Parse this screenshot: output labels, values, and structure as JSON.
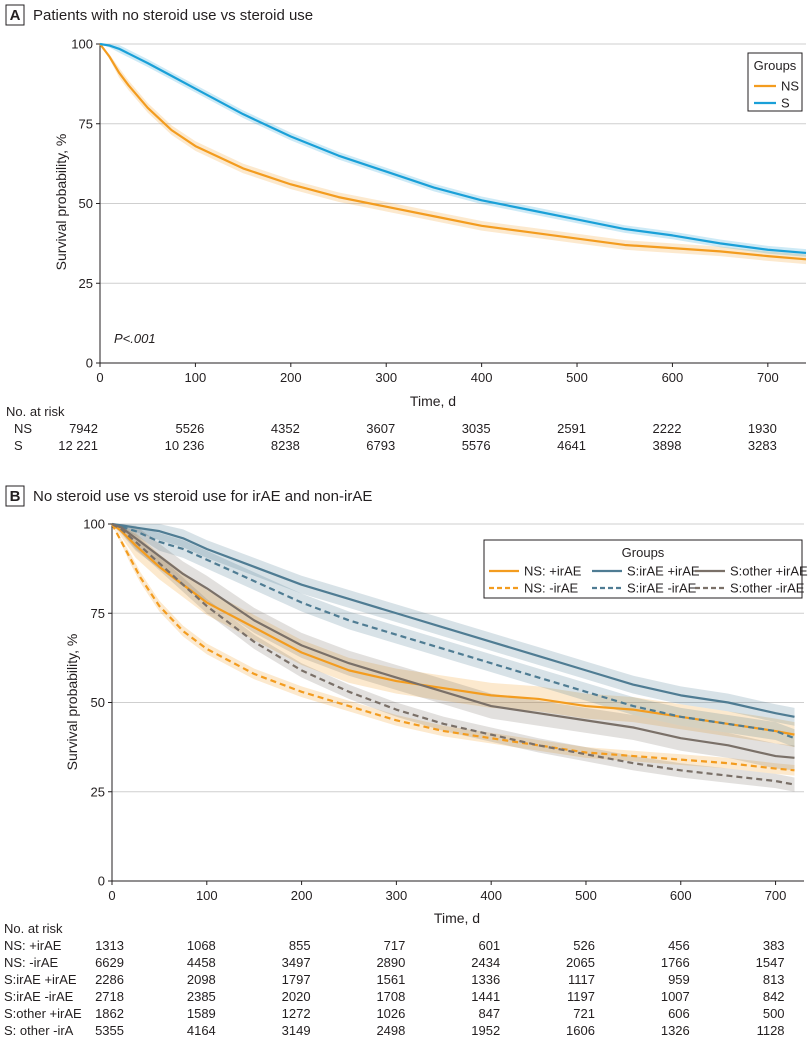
{
  "chart_data": [
    {
      "type": "line",
      "panel_letter": "A",
      "title": "Patients with no steroid use vs steroid use",
      "xlabel": "Time, d",
      "ylabel": "Survival probability, %",
      "xlim": [
        0,
        740
      ],
      "ylim": [
        0,
        100
      ],
      "xticks": [
        0,
        100,
        200,
        300,
        400,
        500,
        600,
        700
      ],
      "yticks": [
        0,
        25,
        50,
        75,
        100
      ],
      "grid": "horizontal",
      "legend_title": "Groups",
      "legend_position": "top-right",
      "annotation": "P<.001",
      "series": [
        {
          "name": "NS",
          "color": "#f39c1f",
          "dash": "solid",
          "ci": 1.5,
          "x": [
            0,
            10,
            20,
            30,
            50,
            75,
            100,
            150,
            200,
            250,
            300,
            350,
            400,
            450,
            500,
            550,
            600,
            650,
            700,
            740
          ],
          "y": [
            100,
            96,
            91,
            87,
            80,
            73,
            68,
            61,
            56,
            52,
            49,
            46,
            43,
            41,
            39,
            37,
            36,
            35,
            33.5,
            32.5
          ]
        },
        {
          "name": "S",
          "color": "#1aa0d8",
          "dash": "solid",
          "ci": 1.2,
          "x": [
            0,
            10,
            20,
            30,
            50,
            75,
            100,
            150,
            200,
            250,
            300,
            350,
            400,
            450,
            500,
            550,
            600,
            650,
            700,
            740
          ],
          "y": [
            100,
            99.5,
            98.5,
            97,
            94,
            90,
            86,
            78,
            71,
            65,
            60,
            55,
            51,
            48,
            45,
            42,
            40,
            37.5,
            35.5,
            34.5
          ]
        }
      ],
      "risk_table": {
        "label": "No. at risk",
        "times": [
          0,
          100,
          200,
          300,
          400,
          500,
          600,
          700
        ],
        "rows": [
          {
            "label": "NS",
            "values": [
              "7942",
              "5526",
              "4352",
              "3607",
              "3035",
              "2591",
              "2222",
              "1930"
            ]
          },
          {
            "label": "S",
            "values": [
              "12 221",
              "10 236",
              "8238",
              "6793",
              "5576",
              "4641",
              "3898",
              "3283"
            ]
          }
        ]
      }
    },
    {
      "type": "line",
      "panel_letter": "B",
      "title": "No steroid use vs steroid use for irAE and non-irAE",
      "xlabel": "Time, d",
      "ylabel": "Survival probability, %",
      "xlim": [
        0,
        730
      ],
      "ylim": [
        0,
        100
      ],
      "xticks": [
        0,
        100,
        200,
        300,
        400,
        500,
        600,
        700
      ],
      "yticks": [
        0,
        25,
        50,
        75,
        100
      ],
      "grid": "horizontal",
      "legend_title": "Groups",
      "legend_position": "top-right",
      "series": [
        {
          "name": "NS: +irAE",
          "color": "#f39c1f",
          "dash": "solid",
          "ci": 3.5,
          "x": [
            0,
            10,
            25,
            50,
            75,
            100,
            150,
            200,
            250,
            300,
            350,
            400,
            450,
            500,
            550,
            600,
            650,
            700,
            720
          ],
          "y": [
            100,
            98,
            94,
            88,
            83,
            78,
            71,
            64,
            59,
            56,
            54,
            52,
            51,
            49,
            48,
            46,
            44,
            42,
            41
          ]
        },
        {
          "name": "NS: -irAE",
          "color": "#f39c1f",
          "dash": "dashed",
          "ci": 1.5,
          "x": [
            0,
            10,
            20,
            30,
            50,
            75,
            100,
            150,
            200,
            250,
            300,
            350,
            400,
            450,
            500,
            550,
            600,
            650,
            700,
            720
          ],
          "y": [
            100,
            95,
            90,
            85,
            77,
            70,
            65,
            58,
            53,
            49,
            45,
            42,
            40,
            38,
            36,
            35,
            34,
            33,
            31.5,
            31
          ]
        },
        {
          "name": "S:irAE +irAE",
          "color": "#4f7c93",
          "dash": "solid",
          "ci": 2.5,
          "x": [
            0,
            25,
            50,
            75,
            100,
            150,
            200,
            250,
            300,
            350,
            400,
            450,
            500,
            550,
            600,
            650,
            700,
            720
          ],
          "y": [
            100,
            99,
            98,
            96,
            93,
            88,
            83,
            79,
            75,
            71,
            67,
            63,
            59,
            55,
            52,
            50,
            47,
            46
          ]
        },
        {
          "name": "S:irAE -irAE",
          "color": "#4f7c93",
          "dash": "dashed",
          "ci": 2.5,
          "x": [
            0,
            25,
            50,
            75,
            100,
            150,
            200,
            250,
            300,
            350,
            400,
            450,
            500,
            550,
            600,
            650,
            700,
            720
          ],
          "y": [
            100,
            98,
            95,
            93,
            90,
            84,
            78,
            73,
            69,
            65,
            61,
            57,
            53,
            49,
            46,
            44,
            42,
            40
          ]
        },
        {
          "name": "S:other +irAE",
          "color": "#7a7068",
          "dash": "solid",
          "ci": 3.5,
          "x": [
            0,
            10,
            25,
            50,
            75,
            100,
            150,
            200,
            250,
            300,
            350,
            400,
            450,
            500,
            550,
            600,
            650,
            700,
            720
          ],
          "y": [
            100,
            99,
            96,
            91,
            86,
            82,
            73,
            66,
            61,
            57,
            53,
            49,
            47,
            45,
            43,
            40,
            38,
            35,
            34.5
          ]
        },
        {
          "name": "S:other -irAE",
          "color": "#7a7068",
          "dash": "dashed",
          "ci": 2,
          "x": [
            0,
            10,
            25,
            50,
            75,
            100,
            150,
            200,
            250,
            300,
            350,
            400,
            450,
            500,
            550,
            600,
            650,
            700,
            720
          ],
          "y": [
            100,
            98.5,
            95,
            89,
            83,
            77,
            67,
            59,
            53,
            48,
            44,
            41,
            38,
            35.5,
            33,
            31,
            29.5,
            28,
            27
          ]
        }
      ],
      "risk_table": {
        "label": "No. at risk",
        "times": [
          0,
          100,
          200,
          300,
          400,
          500,
          600,
          700
        ],
        "rows": [
          {
            "label": "NS: +irAE",
            "values": [
              "1313",
              "1068",
              "855",
              "717",
              "601",
              "526",
              "456",
              "383"
            ]
          },
          {
            "label": "NS: -irAE",
            "values": [
              "6629",
              "4458",
              "3497",
              "2890",
              "2434",
              "2065",
              "1766",
              "1547"
            ]
          },
          {
            "label": "S:irAE +irAE",
            "values": [
              "2286",
              "2098",
              "1797",
              "1561",
              "1336",
              "1117",
              "959",
              "813"
            ]
          },
          {
            "label": "S:irAE -irAE",
            "values": [
              "2718",
              "2385",
              "2020",
              "1708",
              "1441",
              "1197",
              "1007",
              "842"
            ]
          },
          {
            "label": "S:other +irAE",
            "values": [
              "1862",
              "1589",
              "1272",
              "1026",
              "847",
              "721",
              "606",
              "500"
            ]
          },
          {
            "label": "S: other -irA",
            "values": [
              "5355",
              "4164",
              "3149",
              "2498",
              "1952",
              "1606",
              "1326",
              "1128"
            ]
          }
        ]
      }
    }
  ]
}
